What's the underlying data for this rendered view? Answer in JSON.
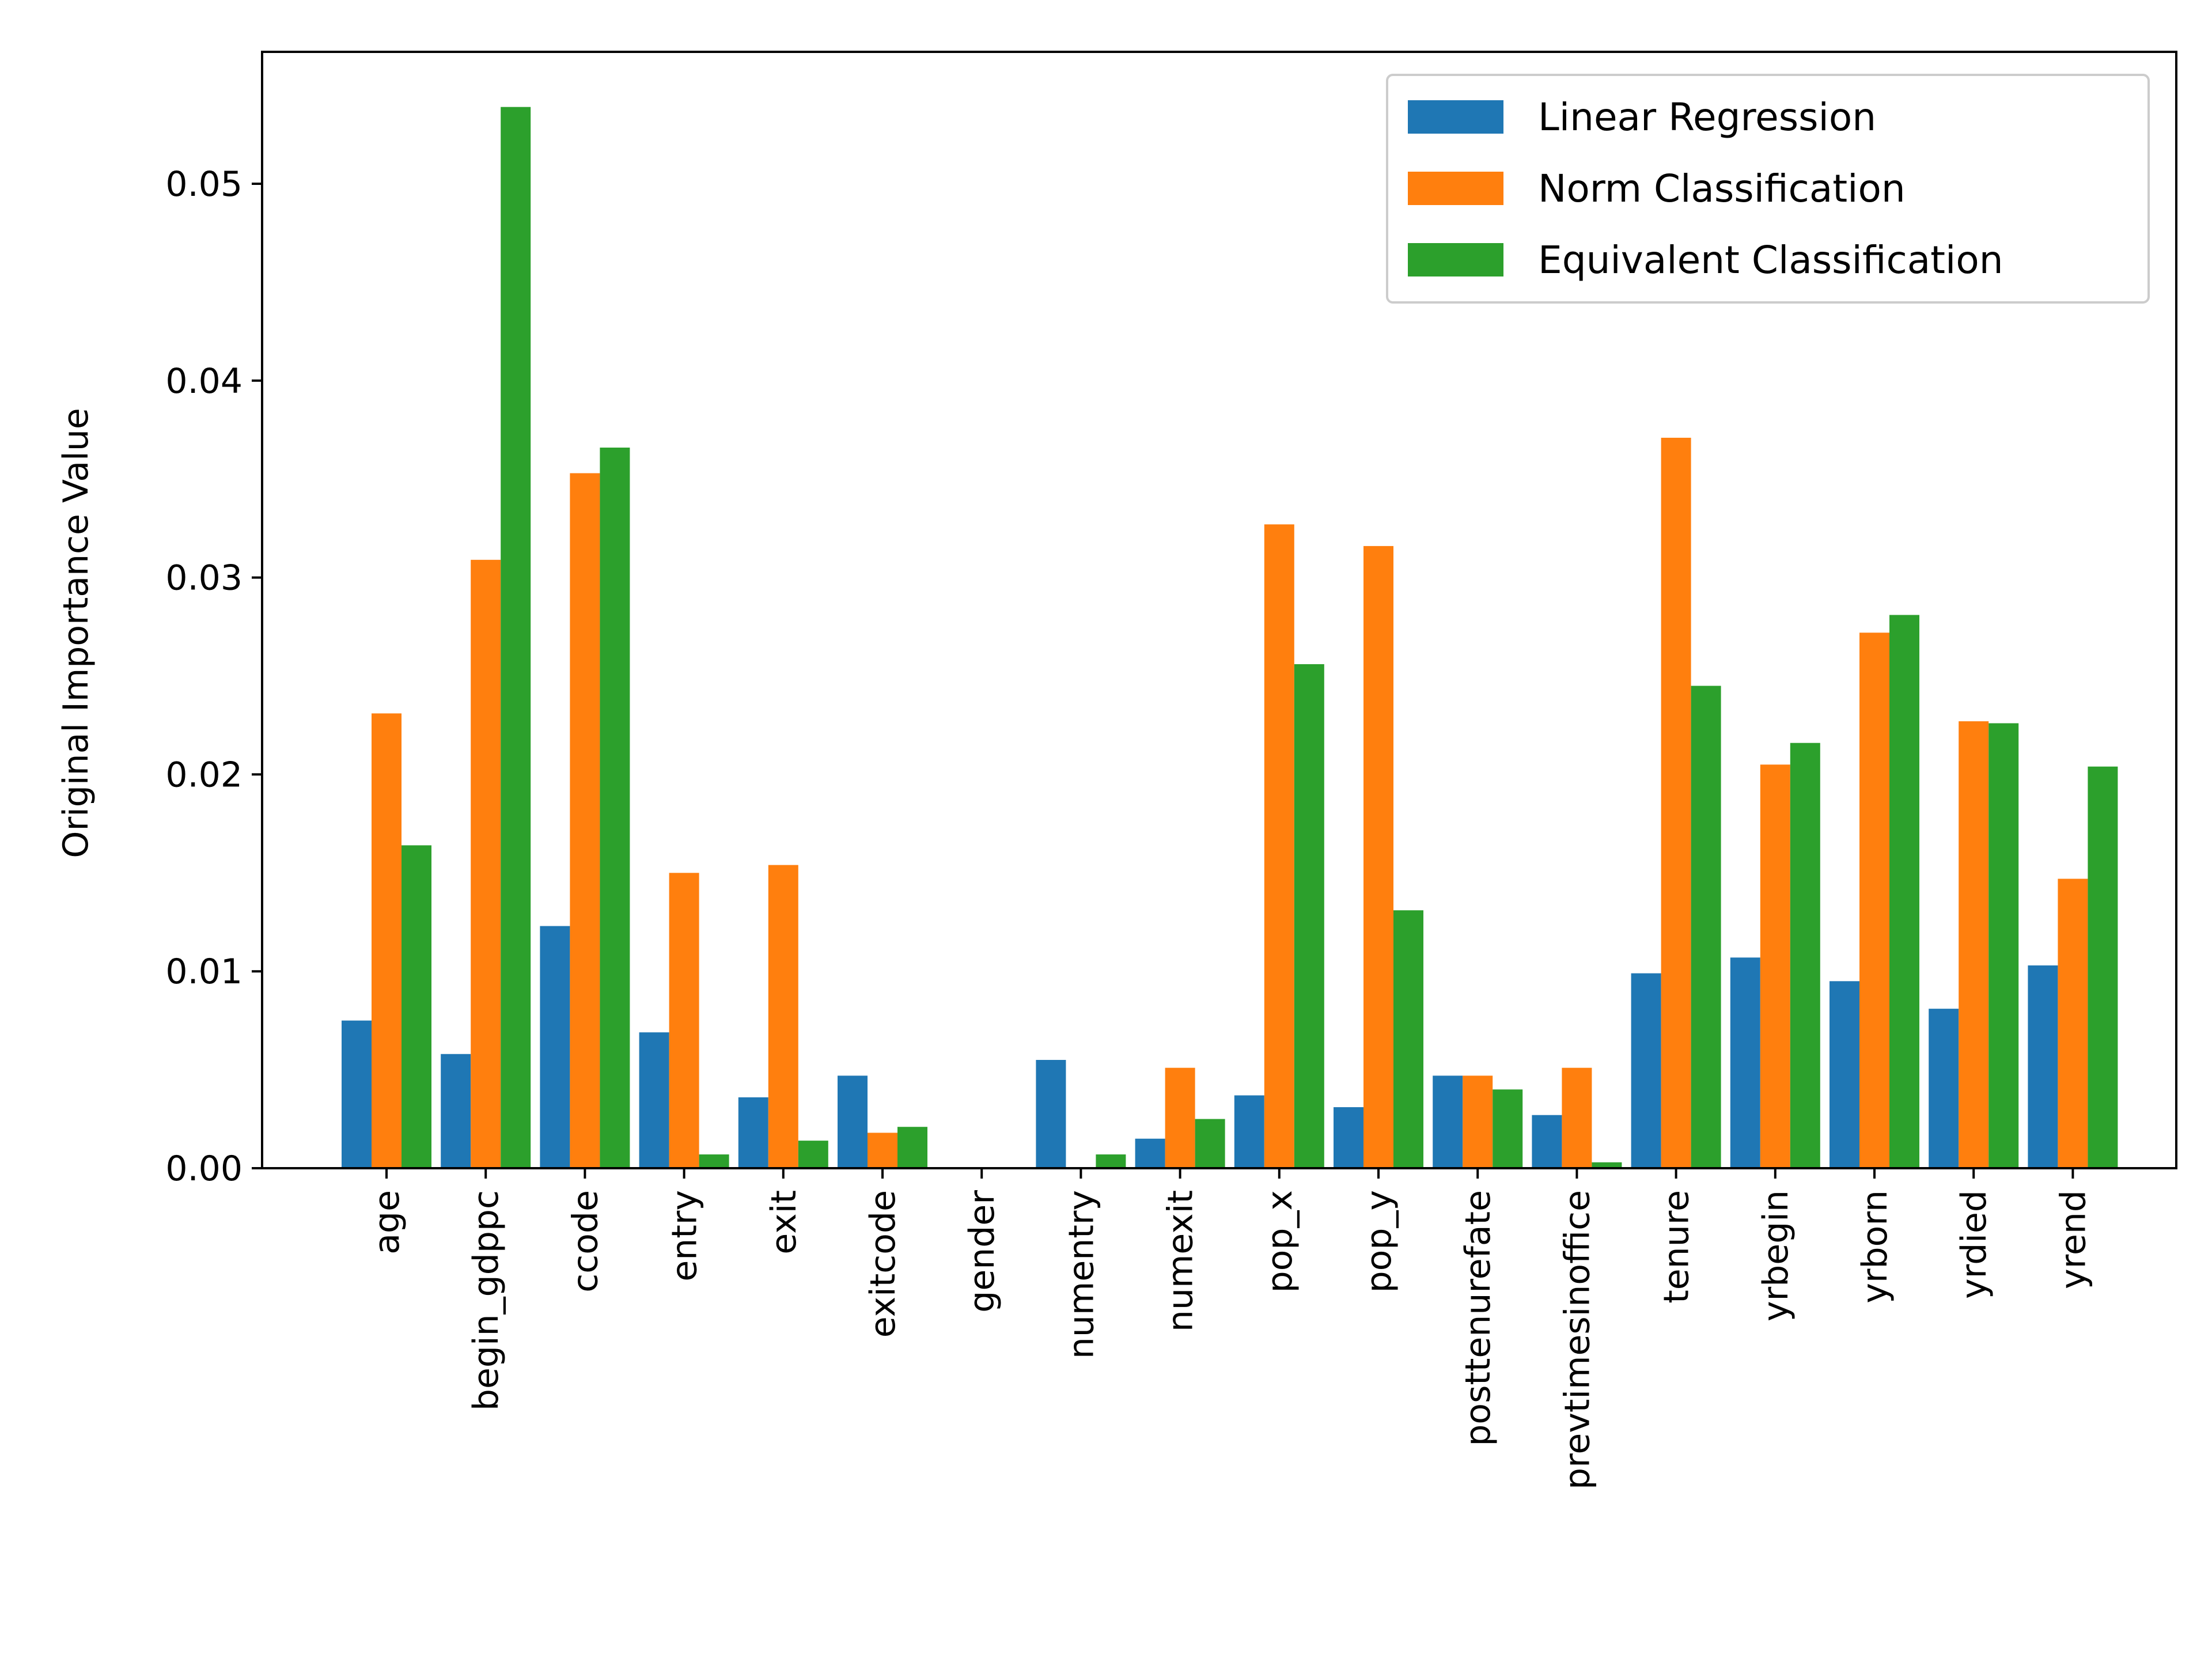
{
  "chart_data": {
    "type": "bar",
    "title": "",
    "xlabel": "",
    "ylabel": "Original Importance Value",
    "ylim": [
      0,
      0.0567
    ],
    "yticks": [
      0.0,
      0.01,
      0.02,
      0.03,
      0.04,
      0.05
    ],
    "ytick_labels": [
      "0.00",
      "0.01",
      "0.02",
      "0.03",
      "0.04",
      "0.05"
    ],
    "grid": false,
    "legend_position": "top-right",
    "categories": [
      "age",
      "begin_gdppc",
      "ccode",
      "entry",
      "exit",
      "exitcode",
      "gender",
      "numentry",
      "numexit",
      "pop_x",
      "pop_y",
      "posttenurefate",
      "prevtimesinoffice",
      "tenure",
      "yrbegin",
      "yrborn",
      "yrdied",
      "yrend"
    ],
    "series": [
      {
        "name": "Linear Regression",
        "color": "#1f77b4",
        "values": [
          0.0075,
          0.0058,
          0.0123,
          0.0069,
          0.0036,
          0.0047,
          0.0,
          0.0055,
          0.0015,
          0.0037,
          0.0031,
          0.0047,
          0.0027,
          0.0099,
          0.0107,
          0.0095,
          0.0081,
          0.0103
        ]
      },
      {
        "name": "Norm Classification",
        "color": "#ff7f0e",
        "values": [
          0.0231,
          0.0309,
          0.0353,
          0.015,
          0.0154,
          0.0018,
          0.0,
          0.0,
          0.0051,
          0.0327,
          0.0316,
          0.0047,
          0.0051,
          0.0371,
          0.0205,
          0.0272,
          0.0227,
          0.0147
        ]
      },
      {
        "name": "Equivalent Classification",
        "color": "#2ca02c",
        "values": [
          0.0164,
          0.0539,
          0.0366,
          0.0007,
          0.0014,
          0.0021,
          0.0,
          0.0007,
          0.0025,
          0.0256,
          0.0131,
          0.004,
          0.0003,
          0.0245,
          0.0216,
          0.0281,
          0.0226,
          0.0204
        ]
      }
    ]
  }
}
